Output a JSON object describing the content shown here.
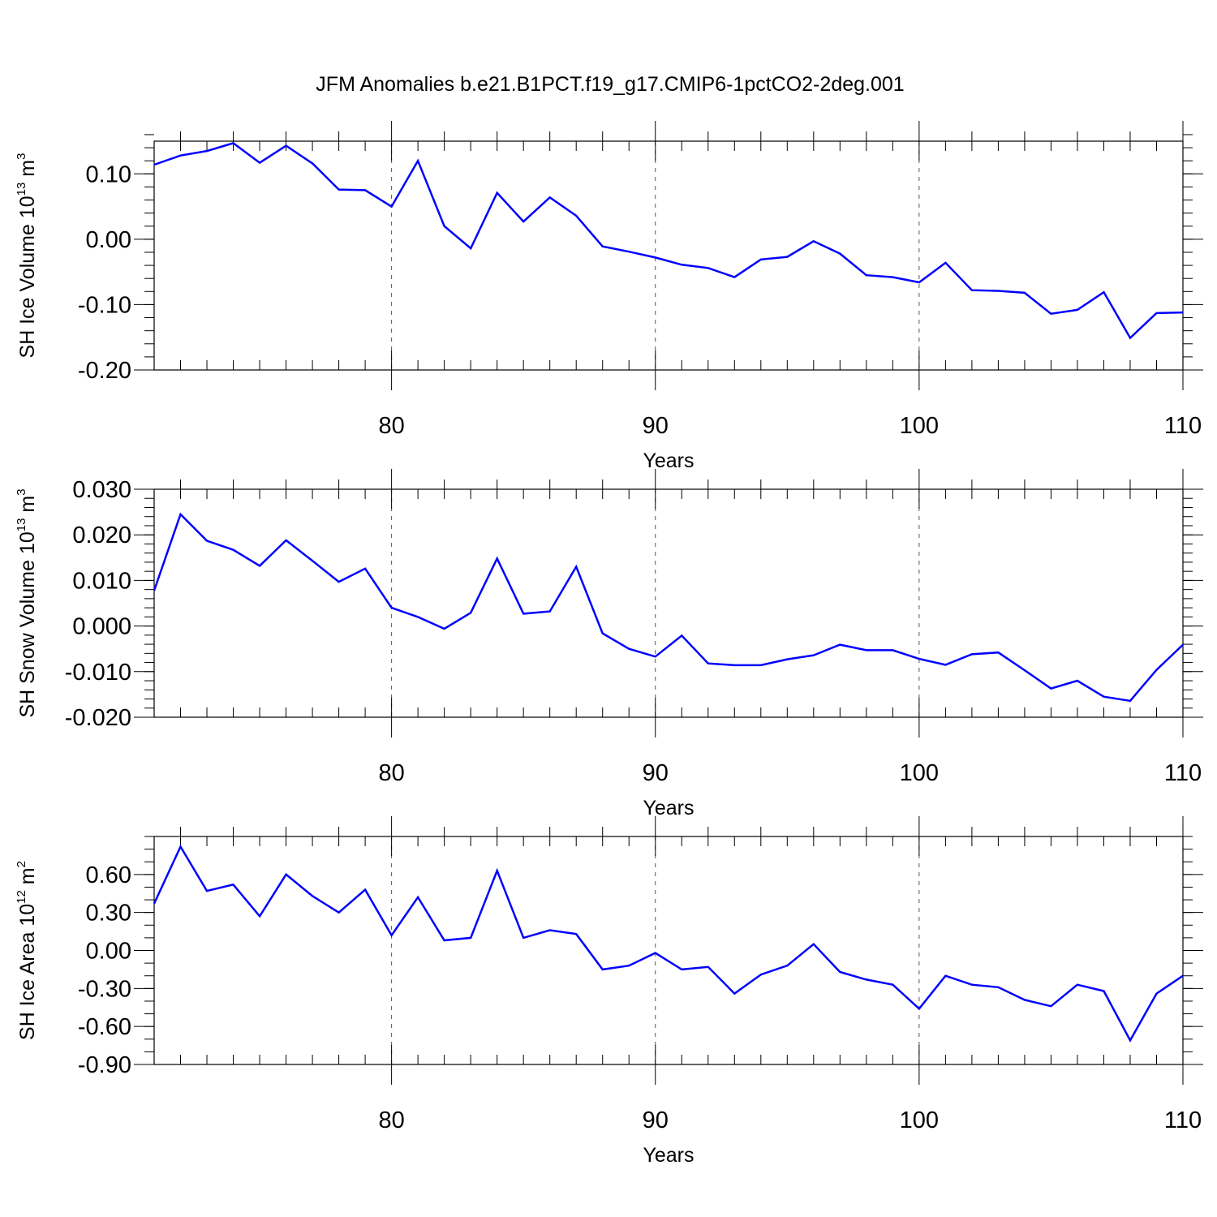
{
  "figure": {
    "title": "JFM Anomalies b.e21.B1PCT.f19_g17.CMIP6-1pctCO2-2deg.001"
  },
  "chart_data": [
    {
      "type": "line",
      "ylabel": {
        "text": "SH Ice Volume 10",
        "sup": "13",
        "unit": " m",
        "unit_sup": "3"
      },
      "xlabel": "Years",
      "xlim": [
        71,
        110
      ],
      "ylim": [
        -0.2,
        0.15
      ],
      "xticks": [
        80,
        90,
        100,
        110
      ],
      "xtick_labels": [
        "80",
        "90",
        "100",
        "110"
      ],
      "yticks": [
        -0.2,
        -0.1,
        0.0,
        0.1
      ],
      "ytick_labels": [
        "-0.20",
        "-0.10",
        "0.00",
        "0.10"
      ],
      "y_minor_step": 0.02,
      "grid": "dashed vertical at major x ticks",
      "line_color": "#0000ff",
      "x": [
        71,
        72,
        73,
        74,
        75,
        76,
        77,
        78,
        79,
        80,
        81,
        82,
        83,
        84,
        85,
        86,
        87,
        88,
        89,
        90,
        91,
        92,
        93,
        94,
        95,
        96,
        97,
        98,
        99,
        100,
        101,
        102,
        103,
        104,
        105,
        106,
        107,
        108,
        109,
        110
      ],
      "y": [
        0.114,
        0.128,
        0.135,
        0.147,
        0.117,
        0.143,
        0.116,
        0.076,
        0.075,
        0.05,
        0.12,
        0.02,
        -0.014,
        0.071,
        0.027,
        0.064,
        0.036,
        -0.011,
        -0.019,
        -0.028,
        -0.039,
        -0.044,
        -0.058,
        -0.031,
        -0.027,
        -0.003,
        -0.022,
        -0.055,
        -0.058,
        -0.066,
        -0.036,
        -0.078,
        -0.079,
        -0.082,
        -0.114,
        -0.108,
        -0.081,
        -0.151,
        -0.113,
        -0.112
      ]
    },
    {
      "type": "line",
      "ylabel": {
        "text": "SH Snow Volume 10",
        "sup": "13",
        "unit": " m",
        "unit_sup": "3"
      },
      "xlabel": "Years",
      "xlim": [
        71,
        110
      ],
      "ylim": [
        -0.02,
        0.03
      ],
      "xticks": [
        80,
        90,
        100,
        110
      ],
      "xtick_labels": [
        "80",
        "90",
        "100",
        "110"
      ],
      "yticks": [
        -0.02,
        -0.01,
        0.0,
        0.01,
        0.02,
        0.03
      ],
      "ytick_labels": [
        "-0.020",
        "-0.010",
        "0.000",
        "0.010",
        "0.020",
        "0.030"
      ],
      "y_minor_step": 0.002,
      "grid": "dashed vertical at major x ticks",
      "line_color": "#0000ff",
      "x": [
        71,
        72,
        73,
        74,
        75,
        76,
        77,
        78,
        79,
        80,
        81,
        82,
        83,
        84,
        85,
        86,
        87,
        88,
        89,
        90,
        91,
        92,
        93,
        94,
        95,
        96,
        97,
        98,
        99,
        100,
        101,
        102,
        103,
        104,
        105,
        106,
        107,
        108,
        109,
        110
      ],
      "y": [
        0.0078,
        0.0245,
        0.0187,
        0.0167,
        0.0132,
        0.0188,
        0.0143,
        0.0097,
        0.0126,
        0.004,
        0.002,
        -0.0006,
        0.0029,
        0.0148,
        0.0027,
        0.0032,
        0.013,
        -0.0016,
        -0.005,
        -0.0067,
        -0.0021,
        -0.0082,
        -0.0086,
        -0.0086,
        -0.0073,
        -0.0064,
        -0.0041,
        -0.0053,
        -0.0053,
        -0.0072,
        -0.0085,
        -0.0062,
        -0.0058,
        -0.0097,
        -0.0137,
        -0.012,
        -0.0155,
        -0.0164,
        -0.0096,
        -0.0041
      ]
    },
    {
      "type": "line",
      "ylabel": {
        "text": "SH Ice Area 10",
        "sup": "12",
        "unit": " m",
        "unit_sup": "2"
      },
      "xlabel": "Years",
      "xlim": [
        71,
        110
      ],
      "ylim": [
        -0.9,
        0.9
      ],
      "xticks": [
        80,
        90,
        100,
        110
      ],
      "xtick_labels": [
        "80",
        "90",
        "100",
        "110"
      ],
      "yticks": [
        -0.9,
        -0.6,
        -0.3,
        0.0,
        0.3,
        0.6
      ],
      "ytick_labels": [
        "-0.90",
        "-0.60",
        "-0.30",
        "0.00",
        "0.30",
        "0.60"
      ],
      "y_minor_step": 0.1,
      "grid": "dashed vertical at major x ticks",
      "line_color": "#0000ff",
      "x": [
        71,
        72,
        73,
        74,
        75,
        76,
        77,
        78,
        79,
        80,
        81,
        82,
        83,
        84,
        85,
        86,
        87,
        88,
        89,
        90,
        91,
        92,
        93,
        94,
        95,
        96,
        97,
        98,
        99,
        100,
        101,
        102,
        103,
        104,
        105,
        106,
        107,
        108,
        109,
        110
      ],
      "y": [
        0.37,
        0.82,
        0.47,
        0.52,
        0.27,
        0.6,
        0.43,
        0.3,
        0.48,
        0.12,
        0.42,
        0.08,
        0.1,
        0.63,
        0.1,
        0.16,
        0.13,
        -0.15,
        -0.12,
        -0.02,
        -0.15,
        -0.13,
        -0.34,
        -0.19,
        -0.12,
        0.05,
        -0.17,
        -0.23,
        -0.27,
        -0.46,
        -0.2,
        -0.27,
        -0.29,
        -0.39,
        -0.44,
        -0.27,
        -0.32,
        -0.71,
        -0.34,
        -0.2
      ]
    }
  ]
}
